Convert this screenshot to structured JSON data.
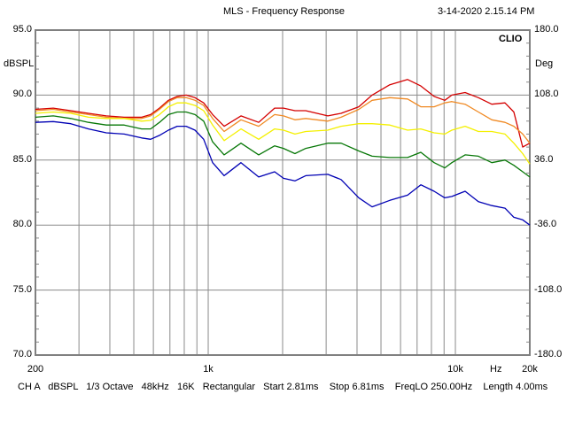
{
  "header": {
    "title": "MLS - Frequency Response",
    "timestamp": "3-14-2020 2.15.14 PM",
    "brand": "CLIO"
  },
  "footer": {
    "settings": "CH A   dBSPL   1/3 Octave   48kHz   16K   Rectangular   Start 2.81ms    Stop 6.81ms    FreqLO 250.00Hz    Length 4.00ms"
  },
  "chart_data": {
    "type": "line",
    "title": "MLS - Frequency Response",
    "ylabel": "dBSPL",
    "y2label": "Deg",
    "xlabel": "Hz",
    "xscale": "log",
    "xlim": [
      200,
      20000
    ],
    "ylim": [
      70,
      95
    ],
    "y2lim": [
      -180,
      180
    ],
    "grid": true,
    "yticks": [
      "95.0",
      "90.0",
      "85.0",
      "80.0",
      "75.0",
      "70.0"
    ],
    "y2ticks": [
      "180.0",
      "108.0",
      "36.0",
      "-36.0",
      "-108.0",
      "-180.0"
    ],
    "xticks": [
      {
        "value": 200,
        "label": "200"
      },
      {
        "value": 1000,
        "label": "1k"
      },
      {
        "value": 10000,
        "label": "10k"
      },
      {
        "value": 20000,
        "label": "20k"
      }
    ],
    "x": [
      200,
      236,
      278,
      328,
      387,
      457,
      538,
      585,
      635,
      690,
      749,
      814,
      884,
      959,
      1042,
      1160,
      1357,
      1601,
      1857,
      2017,
      2244,
      2480,
      3046,
      3449,
      4066,
      4602,
      5430,
      6406,
      7248,
      8204,
      9056,
      9674,
      10948,
      12394,
      14031,
      15873,
      17240,
      18720,
      20000
    ],
    "series": [
      {
        "name": "red",
        "color": "#d40000",
        "values": [
          88.9,
          89.0,
          88.8,
          88.6,
          88.4,
          88.3,
          88.3,
          88.5,
          89.0,
          89.6,
          89.9,
          90.0,
          89.8,
          89.4,
          88.5,
          87.6,
          88.4,
          87.9,
          89.0,
          89.0,
          88.8,
          88.8,
          88.4,
          88.6,
          89.1,
          90.0,
          90.8,
          91.2,
          90.7,
          89.9,
          89.6,
          90.0,
          90.2,
          89.8,
          89.3,
          89.4,
          88.7,
          86.0,
          86.3
        ]
      },
      {
        "name": "orange",
        "color": "#f08a24",
        "values": [
          88.8,
          88.9,
          88.7,
          88.5,
          88.3,
          88.2,
          88.2,
          88.4,
          88.9,
          89.5,
          89.8,
          89.8,
          89.6,
          89.2,
          88.2,
          87.2,
          88.1,
          87.6,
          88.5,
          88.4,
          88.1,
          88.2,
          88.0,
          88.3,
          88.9,
          89.6,
          89.8,
          89.7,
          89.1,
          89.1,
          89.4,
          89.5,
          89.3,
          88.7,
          88.1,
          87.9,
          87.6,
          87.0,
          86.3
        ]
      },
      {
        "name": "yellow",
        "color": "#f4f000",
        "values": [
          88.6,
          88.7,
          88.6,
          88.3,
          88.2,
          88.2,
          88.0,
          88.05,
          88.5,
          89.1,
          89.4,
          89.4,
          89.2,
          88.8,
          87.7,
          86.5,
          87.4,
          86.6,
          87.4,
          87.3,
          87.0,
          87.2,
          87.3,
          87.6,
          87.8,
          87.8,
          87.7,
          87.3,
          87.4,
          87.1,
          87.0,
          87.3,
          87.6,
          87.2,
          87.2,
          87.0,
          86.3,
          85.5,
          84.7
        ]
      },
      {
        "name": "green",
        "color": "#087808",
        "values": [
          88.3,
          88.4,
          88.2,
          87.9,
          87.7,
          87.7,
          87.4,
          87.4,
          87.9,
          88.5,
          88.7,
          88.7,
          88.5,
          88.0,
          86.4,
          85.4,
          86.3,
          85.4,
          86.1,
          85.9,
          85.5,
          85.9,
          86.3,
          86.3,
          85.7,
          85.3,
          85.2,
          85.2,
          85.6,
          84.8,
          84.4,
          84.8,
          85.4,
          85.3,
          84.8,
          85.0,
          84.6,
          84.1,
          83.7
        ]
      },
      {
        "name": "blue",
        "color": "#0000b4",
        "values": [
          87.9,
          87.96,
          87.8,
          87.4,
          87.1,
          87.0,
          86.7,
          86.6,
          86.9,
          87.3,
          87.6,
          87.6,
          87.3,
          86.6,
          84.8,
          83.8,
          84.8,
          83.7,
          84.1,
          83.6,
          83.4,
          83.8,
          83.9,
          83.5,
          82.1,
          81.4,
          81.9,
          82.3,
          83.1,
          82.6,
          82.1,
          82.2,
          82.6,
          81.8,
          81.5,
          81.3,
          80.6,
          80.4,
          80.0
        ]
      }
    ]
  }
}
